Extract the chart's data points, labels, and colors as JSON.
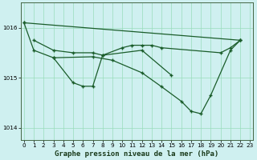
{
  "title": "Graphe pression niveau de la mer (hPa)",
  "bg_color": "#cff0f0",
  "grid_color": "#99ddbb",
  "line_color": "#1a5c2a",
  "series": {
    "line_top": {
      "x": [
        0,
        22
      ],
      "y": [
        1016.1,
        1015.75
      ]
    },
    "line_upper": {
      "x": [
        1,
        3,
        5,
        7,
        8,
        10,
        11,
        12,
        13,
        14,
        20,
        21,
        22
      ],
      "y": [
        1015.75,
        1015.55,
        1015.5,
        1015.5,
        1015.45,
        1015.6,
        1015.65,
        1015.65,
        1015.65,
        1015.6,
        1015.5,
        1015.6,
        1015.75
      ]
    },
    "line_dip": {
      "x": [
        0,
        1,
        3,
        5,
        6,
        7,
        8,
        12,
        15
      ],
      "y": [
        1016.1,
        1015.55,
        1015.4,
        1014.9,
        1014.83,
        1014.83,
        1015.45,
        1015.55,
        1015.05
      ]
    },
    "line_drop": {
      "x": [
        3,
        7,
        9,
        12,
        14,
        16,
        17,
        18,
        19,
        21,
        22
      ],
      "y": [
        1015.4,
        1015.42,
        1015.35,
        1015.1,
        1014.82,
        1014.53,
        1014.33,
        1014.28,
        1014.65,
        1015.55,
        1015.75
      ]
    }
  },
  "ylim": [
    1013.75,
    1016.5
  ],
  "yticks": [
    1014.0,
    1015.0,
    1016.0
  ],
  "xlim": [
    -0.3,
    23.3
  ],
  "xticks": [
    0,
    1,
    2,
    3,
    4,
    5,
    6,
    7,
    8,
    9,
    10,
    11,
    12,
    13,
    14,
    15,
    16,
    17,
    18,
    19,
    20,
    21,
    22,
    23
  ],
  "xlabel_fontsize": 6.5,
  "tick_fontsize": 5.2
}
